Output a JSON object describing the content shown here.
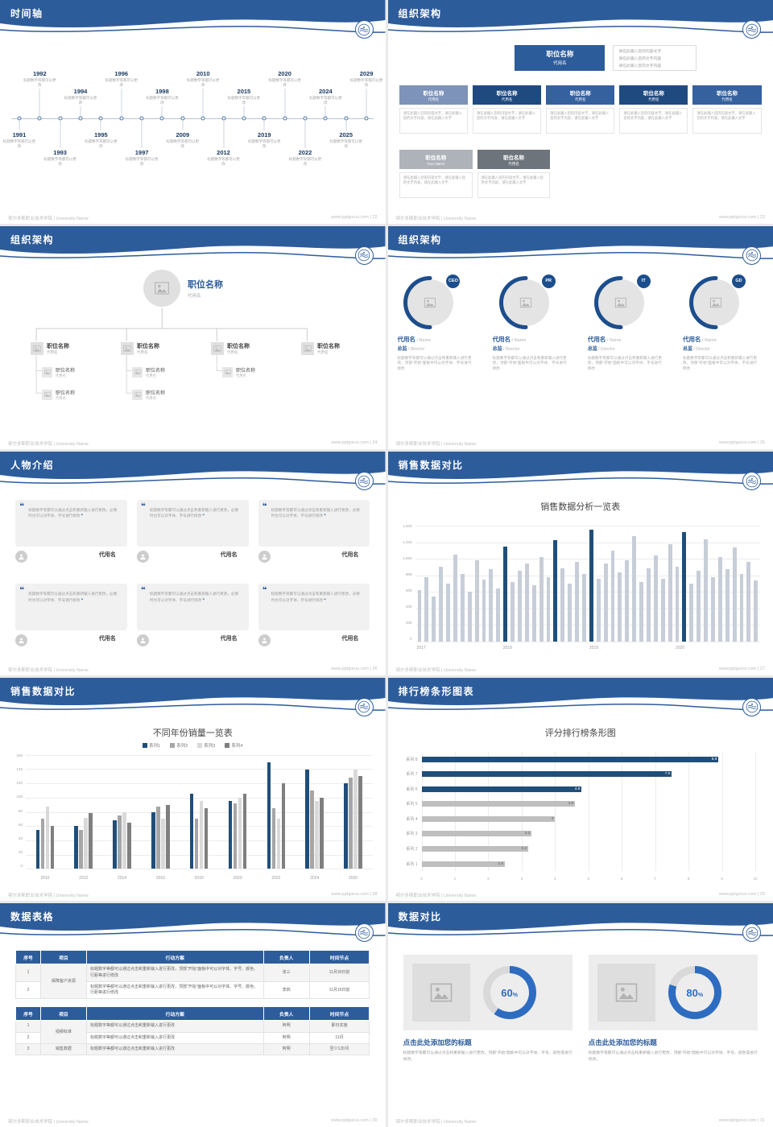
{
  "colors": {
    "primary": "#2d5c9b",
    "dark_blue": "#1f4e79",
    "bar_grey": "#c7ced8",
    "grey_bar": "#bfbfbf",
    "donut_blue": "#2d6cc0",
    "panel_grey": "#ededed"
  },
  "footer": {
    "left": "鄂尔多斯职业技术学院 | University Name",
    "site": "www.pptgurus.com",
    "sep": "|"
  },
  "slides": [
    {
      "title": "时间轴",
      "page": "22",
      "entries": [
        {
          "year": "1991",
          "side": "bottom",
          "level": 1,
          "desc": "标题数字等都可以更改"
        },
        {
          "year": "1992",
          "side": "top",
          "level": 2,
          "desc": "标题数字等都可以更改"
        },
        {
          "year": "1993",
          "side": "bottom",
          "level": 2,
          "desc": "标题数字等都可以更改"
        },
        {
          "year": "1994",
          "side": "top",
          "level": 1,
          "desc": "标题数字等都可以更改"
        },
        {
          "year": "1995",
          "side": "bottom",
          "level": 1,
          "desc": "标题数字等都可以更改"
        },
        {
          "year": "1996",
          "side": "top",
          "level": 2,
          "desc": "标题数字等都可以更改"
        },
        {
          "year": "1997",
          "side": "bottom",
          "level": 2,
          "desc": "标题数字等都可以更改"
        },
        {
          "year": "1998",
          "side": "top",
          "level": 1,
          "desc": "标题数字等都可以更改"
        },
        {
          "year": "2009",
          "side": "bottom",
          "level": 1,
          "desc": "标题数字等都可以更改"
        },
        {
          "year": "2010",
          "side": "top",
          "level": 2,
          "desc": "标题数字等都可以更改"
        },
        {
          "year": "2012",
          "side": "bottom",
          "level": 2,
          "desc": "标题数字等都可以更改"
        },
        {
          "year": "2015",
          "side": "top",
          "level": 1,
          "desc": "标题数字等都可以更改"
        },
        {
          "year": "2019",
          "side": "bottom",
          "level": 1,
          "desc": "标题数字等都可以更改"
        },
        {
          "year": "2020",
          "side": "top",
          "level": 2,
          "desc": "标题数字等都可以更改"
        },
        {
          "year": "2022",
          "side": "bottom",
          "level": 2,
          "desc": "标题数字等都可以更改"
        },
        {
          "year": "2024",
          "side": "top",
          "level": 1,
          "desc": "标题数字等都可以更改"
        },
        {
          "year": "2025",
          "side": "bottom",
          "level": 1,
          "desc": "标题数字等都可以更改"
        },
        {
          "year": "2029",
          "side": "top",
          "level": 2,
          "desc": "标题数字等都可以更改"
        }
      ]
    },
    {
      "title": "组织架构",
      "page": "23",
      "top": {
        "title": "职位名称",
        "sub": "代用名"
      },
      "note": [
        "请在此输入您的内容文字",
        "请在此输入您的文字内容",
        "请在此输入您的文字内容"
      ],
      "row": [
        {
          "title": "职位名称",
          "sub": "代用名",
          "desc": "请在此输入您的内容文字，请在此输入您的文字内容，请在此输入文字"
        },
        {
          "title": "职位名称",
          "sub": "代用名",
          "desc": "请在此输入您的内容文字，请在此输入您的文字内容，请在此输入文字"
        },
        {
          "title": "职位名称",
          "sub": "代用名",
          "desc": "请在此输入您的内容文字，请在此输入您的文字内容，请在此输入文字"
        },
        {
          "title": "职位名称",
          "sub": "代用名",
          "desc": "请在此输入您的内容文字，请在此输入您的文字内容，请在此输入文字"
        },
        {
          "title": "职位名称",
          "sub": "代用名",
          "desc": "请在此输入您的内容文字，请在此输入您的文字内容，请在此输入文字"
        }
      ],
      "grey": [
        {
          "title": "职位名称",
          "sub": "Your Name",
          "desc": "请在此输入您的内容文字，请在此输入您的文字内容，请在此输入文字"
        },
        {
          "title": "职位名称",
          "sub": "代用名",
          "desc": "请在此输入您的内容文字，请在此输入您的文字内容，请在此输入文字"
        }
      ]
    },
    {
      "title": "组织架构",
      "page": "24",
      "root": {
        "title": "职位名称",
        "sub": "代用名"
      },
      "nodes": [
        {
          "title": "职位名称",
          "sub": "代用名",
          "children": [
            {
              "title": "职位名称",
              "sub": "代用名"
            },
            {
              "title": "职位名称",
              "sub": "代用名"
            }
          ]
        },
        {
          "title": "职位名称",
          "sub": "代用名",
          "children": [
            {
              "title": "职位名称",
              "sub": "代用名"
            },
            {
              "title": "职位名称",
              "sub": "代用名"
            }
          ]
        },
        {
          "title": "职位名称",
          "sub": "代用名",
          "children": [
            {
              "title": "职位名称",
              "sub": "代用名"
            }
          ]
        },
        {
          "title": "职位名称",
          "sub": "代用名",
          "children": []
        }
      ]
    },
    {
      "title": "组织架构",
      "page": "25",
      "members": [
        {
          "badge": "CEO",
          "name": "代用名",
          "name_en": "/ Name",
          "role": "总监",
          "role_en": "/ Director",
          "desc": "标题数字等都可以通过点击和重新输入进行更改，顶部“开始”面板中可以对字体、字号进行修改"
        },
        {
          "badge": "PR",
          "name": "代用名",
          "name_en": "/ Name",
          "role": "总监",
          "role_en": "/ Director",
          "desc": "标题数字等都可以通过点击和重新输入进行更改，顶部“开始”面板中可以对字体、字号进行修改"
        },
        {
          "badge": "IT",
          "name": "代用名",
          "name_en": "/ Name",
          "role": "总监",
          "role_en": "/ Director",
          "desc": "标题数字等都可以通过点击和重新输入进行更改，顶部“开始”面板中可以对字体、字号进行修改"
        },
        {
          "badge": "GD",
          "name": "代用名",
          "name_en": "/ Name",
          "role": "总监",
          "role_en": "/ Director",
          "desc": "标题数字等都可以通过点击和重新输入进行更改，顶部“开始”面板中可以对字体、字号进行修改"
        }
      ]
    },
    {
      "title": "人物介绍",
      "page": "26",
      "cards": [
        {
          "text": "标题数字等都可以通过点击和重新输入进行更改，必要时也可以对字体、字号进行修改",
          "name": "代用名"
        },
        {
          "text": "标题数字等都可以通过点击和重新输入进行更改，必要时也可以对字体、字号进行修改",
          "name": "代用名"
        },
        {
          "text": "标题数字等都可以通过点击和重新输入进行更改，必要时也可以对字体、字号进行修改",
          "name": "代用名"
        },
        {
          "text": "标题数字等都可以通过点击和重新输入进行更改，必要时也可以对字体、字号进行修改",
          "name": "代用名"
        },
        {
          "text": "标题数字等都可以通过点击和重新输入进行更改，必要时也可以对字体、字号进行修改",
          "name": "代用名"
        },
        {
          "text": "标题数字等都可以通过点击和重新输入进行更改，必要时也可以对字体、字号进行修改",
          "name": "代用名"
        }
      ]
    },
    {
      "title": "销售数据对比",
      "page": "27",
      "chart": 0
    },
    {
      "title": "销售数据对比",
      "page": "28",
      "chart": 1
    },
    {
      "title": "排行榜条形图表",
      "page": "29",
      "chart": 2
    },
    {
      "title": "数据表格",
      "page": "30",
      "tables": [
        {
          "headers": [
            "序号",
            "项目",
            "行动方案",
            "负责人",
            "时间节点"
          ],
          "rows": [
            {
              "no": "1",
              "item": "保障客户资源",
              "item_span": 2,
              "plan": "标题数字等都可以通过点击和重新输入进行更改，顶部“开始”面板中可以对字体、字号、颜色、行距等进行修改",
              "owner": "张三",
              "time": "11月30日前"
            },
            {
              "no": "2",
              "plan": "标题数字等都可以通过点击和重新输入进行更改，顶部“开始”面板中可以对字体、字号、颜色、行距等进行修改",
              "owner": "李四",
              "time": "11月15日前"
            }
          ]
        },
        {
          "headers": [
            "序号",
            "项目",
            "行动方案",
            "负责人",
            "时间节点"
          ],
          "rows": [
            {
              "no": "1",
              "item": "视频标准",
              "item_span": 2,
              "plan": "标题数字等都可以通过点击和重新输入进行更改",
              "owner": "阿明",
              "time": "即日实施"
            },
            {
              "no": "2",
              "plan": "标题数字等都可以通过点击和重新输入进行更改",
              "owner": "阿明",
              "time": "11月"
            },
            {
              "no": "3",
              "item": "销售数据",
              "item_span": 1,
              "plan": "标题数字等都可以通过点击和重新输入进行更改",
              "owner": "阿明",
              "time": "至少1次/月"
            }
          ]
        }
      ]
    },
    {
      "title": "数据对比",
      "page": "31",
      "chart": 3,
      "panels": [
        {
          "title": "点击此处添加您的标题",
          "desc": "标题数字等都可以通过点击和重新输入进行更改，顶部“开始”面板中可以对字体、字号、颜色等进行修改。"
        },
        {
          "title": "点击此处添加您的标题",
          "desc": "标题数字等都可以通过点击和重新输入进行更改，顶部“开始”面板中可以对字体、字号、颜色等进行修改。"
        }
      ]
    }
  ],
  "chart_data": [
    {
      "type": "bar",
      "title": "销售数据分析一览表",
      "ylim": [
        0,
        1400
      ],
      "y_ticks": [
        "1,400",
        "1,200",
        "1,000",
        "800",
        "600",
        "400",
        "200",
        "0"
      ],
      "x_labels": [
        "2017",
        "2018",
        "2019",
        "2020"
      ],
      "values": [
        620,
        780,
        540,
        900,
        700,
        1050,
        820,
        600,
        980,
        750,
        880,
        640,
        1150,
        720,
        860,
        940,
        680,
        1020,
        780,
        1230,
        890,
        700,
        960,
        820,
        1350,
        760,
        940,
        1100,
        840,
        980,
        1280,
        720,
        890,
        1040,
        760,
        1180,
        900,
        1320,
        700,
        860,
        1240,
        780,
        1020,
        880,
        1140,
        820,
        960,
        740
      ],
      "highlight_indexes": [
        12,
        19,
        24,
        37
      ],
      "bar_color": "#c7ced8",
      "highlight_color": "#1f4e79",
      "grid": true,
      "legend_position": "none"
    },
    {
      "type": "bar",
      "title": "不同年份销量一览表",
      "ylim": [
        0,
        160
      ],
      "y_ticks": [
        "160",
        "140",
        "120",
        "100",
        "80",
        "60",
        "40",
        "20",
        "0"
      ],
      "categories": [
        "2010",
        "2012",
        "2014",
        "2016",
        "2018",
        "2020",
        "2022",
        "2024",
        "2026"
      ],
      "series": [
        {
          "name": "系列1",
          "color": "#1f4e79",
          "values": [
            55,
            60,
            68,
            80,
            105,
            95,
            150,
            140,
            120
          ]
        },
        {
          "name": "系列2",
          "color": "#a6a6a6",
          "values": [
            70,
            55,
            75,
            88,
            70,
            92,
            85,
            110,
            128
          ]
        },
        {
          "name": "系列3",
          "color": "#d9d9d9",
          "values": [
            88,
            72,
            80,
            70,
            95,
            100,
            70,
            95,
            140
          ]
        },
        {
          "name": "系列4",
          "color": "#7f7f7f",
          "values": [
            60,
            78,
            65,
            90,
            85,
            105,
            120,
            100,
            130
          ]
        }
      ],
      "grid": true,
      "legend_position": "top"
    },
    {
      "type": "bar_horizontal",
      "title": "评分排行榜条形图",
      "xlim": [
        0,
        10
      ],
      "x_ticks": [
        "0",
        "1",
        "2",
        "3",
        "4",
        "5",
        "6",
        "7",
        "8",
        "9",
        "10"
      ],
      "rows": [
        {
          "label": "系列 8",
          "value": 8.9,
          "color": "#1f4e79",
          "label_color": "#ffffff"
        },
        {
          "label": "系列 7",
          "value": 7.5,
          "color": "#1f4e79",
          "label_color": "#ffffff"
        },
        {
          "label": "系列 6",
          "value": 4.8,
          "color": "#1f4e79",
          "label_color": "#ffffff"
        },
        {
          "label": "系列 5",
          "value": 4.6,
          "color": "#bfbfbf",
          "label_color": "#595959"
        },
        {
          "label": "系列 4",
          "value": 4,
          "color": "#bfbfbf",
          "label_color": "#595959"
        },
        {
          "label": "系列 3",
          "value": 3.3,
          "color": "#bfbfbf",
          "label_color": "#595959"
        },
        {
          "label": "系列 2",
          "value": 3.2,
          "color": "#bfbfbf",
          "label_color": "#595959"
        },
        {
          "label": "系列 1",
          "value": 2.5,
          "color": "#bfbfbf",
          "label_color": "#595959"
        }
      ],
      "grid": true
    },
    {
      "type": "donut",
      "color": "#2d6cc0",
      "track": "#d9d9d9",
      "values": [
        {
          "percent": 60
        },
        {
          "percent": 80
        }
      ]
    }
  ]
}
